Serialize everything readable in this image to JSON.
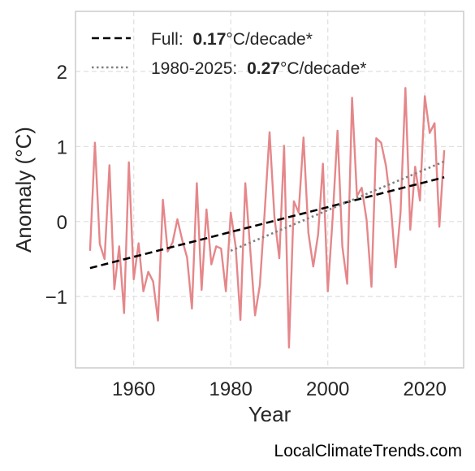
{
  "chart_data": {
    "type": "line",
    "title": "",
    "xlabel": "Year",
    "ylabel": "Anomaly (°C)",
    "xlim": [
      1948,
      2028
    ],
    "ylim": [
      -1.95,
      2.8
    ],
    "x_ticks": [
      1960,
      1980,
      2000,
      2020
    ],
    "x_tick_labels": [
      "1960",
      "1980",
      "2000",
      "2020"
    ],
    "y_ticks": [
      -1,
      0,
      1,
      2
    ],
    "y_tick_labels": [
      "−1",
      "0",
      "1",
      "2"
    ],
    "grid": true,
    "legend_position": "top-left",
    "series": [
      {
        "color": "#e5878a",
        "x": [
          1951,
          1952,
          1953,
          1954,
          1955,
          1956,
          1957,
          1958,
          1959,
          1960,
          1961,
          1962,
          1963,
          1964,
          1965,
          1966,
          1967,
          1968,
          1969,
          1970,
          1971,
          1972,
          1973,
          1974,
          1975,
          1976,
          1977,
          1978,
          1979,
          1980,
          1981,
          1982,
          1983,
          1984,
          1985,
          1986,
          1987,
          1988,
          1989,
          1990,
          1991,
          1992,
          1993,
          1994,
          1995,
          1996,
          1997,
          1998,
          1999,
          2000,
          2001,
          2002,
          2003,
          2004,
          2005,
          2006,
          2007,
          2008,
          2009,
          2010,
          2011,
          2012,
          2013,
          2014,
          2015,
          2016,
          2017,
          2018,
          2019,
          2020,
          2021,
          2022,
          2023,
          2024
        ],
        "y": [
          -0.39,
          1.05,
          -0.3,
          -0.5,
          0.75,
          -0.9,
          -0.33,
          -1.22,
          0.79,
          -0.77,
          -0.29,
          -0.93,
          -0.67,
          -0.8,
          -1.32,
          0.29,
          -0.4,
          -0.28,
          0.03,
          -0.25,
          -0.48,
          -1.16,
          0.51,
          -0.91,
          0.16,
          -0.57,
          -0.33,
          -0.36,
          -0.93,
          0.12,
          -0.33,
          -1.31,
          0.51,
          -0.36,
          -1.25,
          -0.85,
          0.13,
          1.19,
          0.06,
          -0.49,
          1.01,
          -1.68,
          0.27,
          0.12,
          1.12,
          -0.15,
          -0.6,
          -0.17,
          0.77,
          -0.93,
          0.05,
          1.21,
          -0.33,
          -0.83,
          1.65,
          0.34,
          0.45,
          0.02,
          -0.87,
          1.11,
          1.05,
          0.74,
          0.2,
          -0.61,
          0.12,
          1.78,
          -0.11,
          0.73,
          0.28,
          1.67,
          1.18,
          1.31,
          -0.07,
          0.95
        ]
      },
      {
        "name": "Full:",
        "value": "0.17",
        "unit": "°C/decade*",
        "color": "#000000",
        "style": "dashed",
        "x": [
          1951,
          2024
        ],
        "y": [
          -0.62,
          0.59
        ]
      },
      {
        "name": "1980-2025:",
        "value": "0.27",
        "unit": "°C/decade*",
        "color": "#808080",
        "style": "dotted",
        "x": [
          1980,
          2024
        ],
        "y": [
          -0.39,
          0.8
        ]
      }
    ]
  },
  "credit": "LocalClimateTrends.com"
}
